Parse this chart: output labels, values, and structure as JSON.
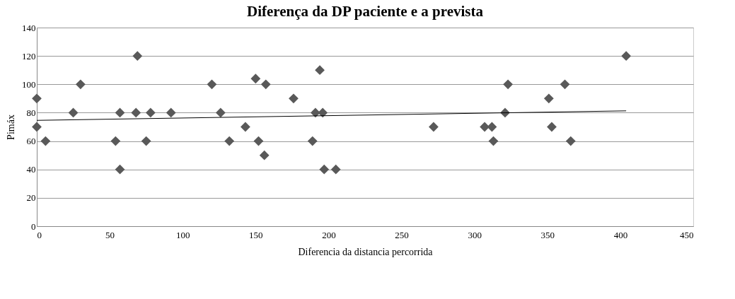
{
  "chart_data": {
    "type": "scatter",
    "title": "Diferença da DP paciente e a prevista",
    "xlabel": "Diferencia da distancia percorrida",
    "ylabel": "Pimáx",
    "xlim": [
      0,
      450
    ],
    "xticks": [
      0,
      50,
      100,
      150,
      200,
      250,
      300,
      350,
      400,
      450
    ],
    "ylim": [
      0,
      140
    ],
    "yticks": [
      0,
      20,
      40,
      60,
      80,
      100,
      120,
      140
    ],
    "grid": "y",
    "series": [
      {
        "marker": "diamond",
        "color": "#595959",
        "x": [
          0,
          0,
          6,
          30,
          25,
          54,
          57,
          57,
          69,
          68,
          75,
          78,
          92,
          120,
          126,
          132,
          143,
          150,
          157,
          152,
          156,
          176,
          194,
          191,
          196,
          189,
          197,
          205,
          272,
          307,
          312,
          313,
          321,
          323,
          351,
          353,
          362,
          366,
          404
        ],
        "values": [
          90,
          70,
          60,
          100,
          80,
          60,
          80,
          40,
          120,
          80,
          60,
          80,
          80,
          100,
          80,
          60,
          70,
          104,
          100,
          60,
          50,
          90,
          110,
          80,
          80,
          60,
          40,
          40,
          70,
          70,
          70,
          60,
          80,
          100,
          90,
          70,
          100,
          60,
          120
        ]
      },
      {
        "type": "line",
        "color": "#000000",
        "x": [
          0,
          404
        ],
        "values": [
          74.6,
          81.3
        ]
      }
    ]
  }
}
